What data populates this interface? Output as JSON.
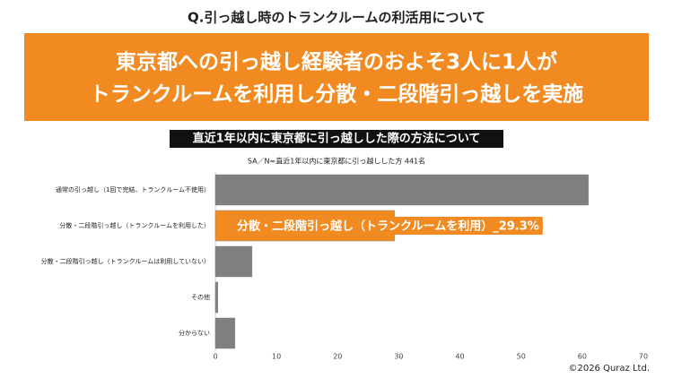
{
  "header": {
    "question": "Q.引っ越し時のトランクルームの利活用について",
    "headline": [
      "東京都への引っ越し経験者のおよそ3人に1人が",
      "トランクルームを利用し分散・二段階引っ越しを実施"
    ],
    "copyright": "©2026 Quraz Ltd."
  },
  "chart_data": {
    "type": "hbar",
    "title": "直近1年以内に東京都に引っ越しした際の方法について",
    "subtitle": "SA／N=直近1年以内に東京都に引っ越しした方 441名",
    "categories": [
      "通常の引っ越し（1回で完結、トランクルーム不使用）",
      "分散・二段階引っ越し（トランクルームを利用した）",
      "分散・二段階引っ越し（トランクルームは利用していない）",
      "その他",
      "分からない"
    ],
    "values": [
      61.0,
      29.3,
      6.0,
      0.4,
      3.2
    ],
    "value_labels": [
      null,
      "分散・二段階引っ越し（トランクルームを利用）_29.3%",
      null,
      null,
      null
    ],
    "colors": [
      "#7f7f7f",
      "#f28a22",
      "#7f7f7f",
      "#7f7f7f",
      "#7f7f7f"
    ],
    "xlim": [
      0,
      70
    ],
    "xticks": [
      0,
      10,
      20,
      30,
      40,
      50,
      60,
      70
    ],
    "grid": false
  }
}
